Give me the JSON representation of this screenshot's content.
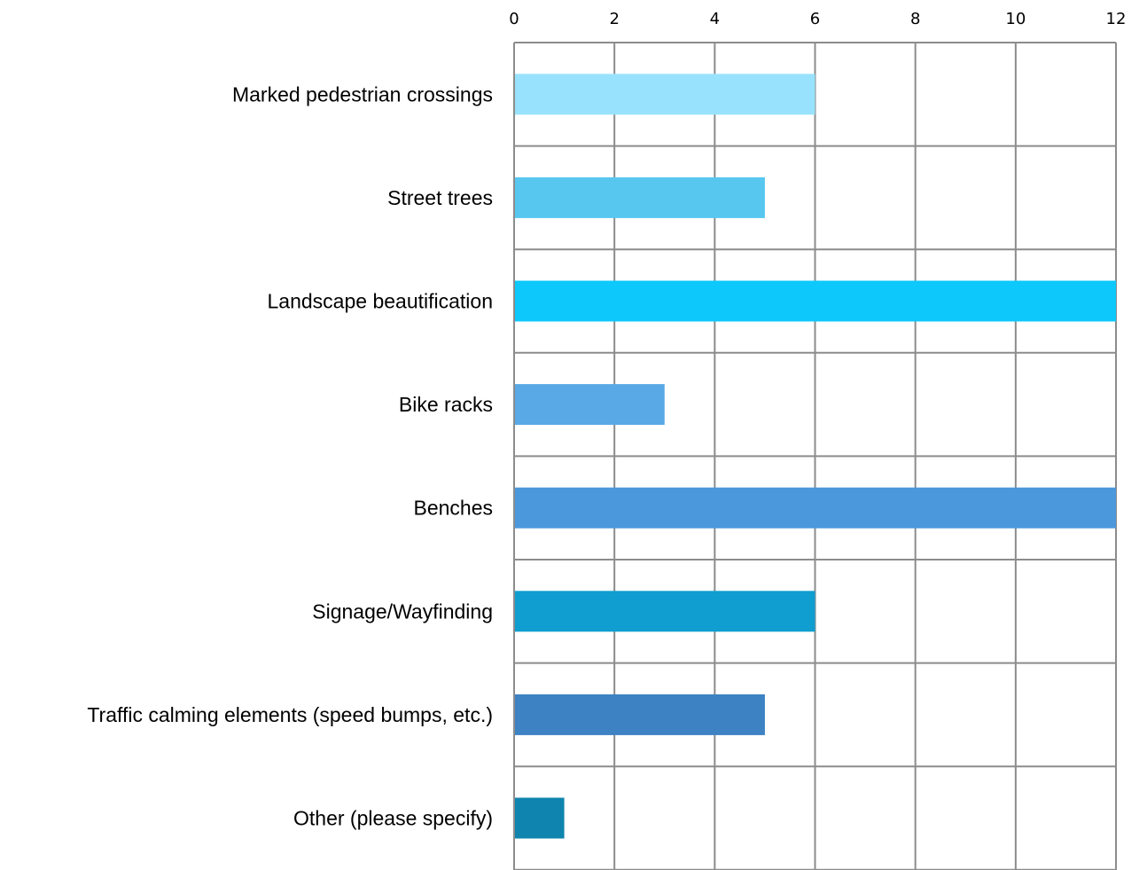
{
  "chart_data": {
    "type": "bar",
    "orientation": "horizontal",
    "categories": [
      "Marked pedestrian crossings",
      "Street trees",
      "Landscape beautification",
      "Bike racks",
      "Benches",
      "Signage/Wayfinding",
      "Traffic calming elements (speed bumps, etc.)",
      "Other (please specify)"
    ],
    "values": [
      6,
      5,
      12,
      3,
      12,
      6,
      5,
      1
    ],
    "colors": [
      "#99e2fd",
      "#57c7f0",
      "#0cc8fb",
      "#58a9e5",
      "#4b98dc",
      "#0f9ecf",
      "#3d82c3",
      "#0e84ae"
    ],
    "title": "",
    "xlabel": "",
    "ylabel": "",
    "xlim": [
      0,
      12
    ],
    "x_ticks": [
      0,
      2,
      4,
      6,
      8,
      10,
      12
    ],
    "x_axis_position": "top",
    "grid": true,
    "legend": "none"
  }
}
